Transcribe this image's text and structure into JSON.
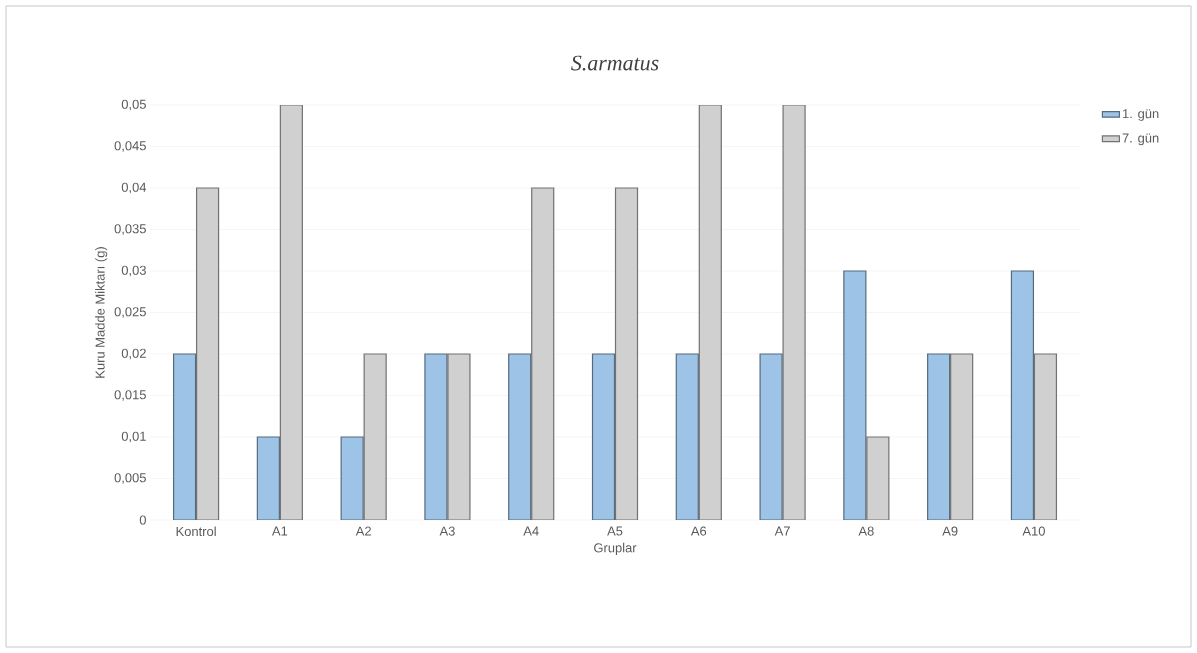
{
  "chart_data": {
    "type": "bar",
    "title": "S.armatus",
    "xlabel": "Gruplar",
    "ylabel": "Kuru Madde Miktarı (g)",
    "categories": [
      "Kontrol",
      "A1",
      "A2",
      "A3",
      "A4",
      "A5",
      "A6",
      "A7",
      "A8",
      "A9",
      "A10"
    ],
    "series": [
      {
        "name": "1. gün",
        "color": "#9dc3e6",
        "values": [
          0.02,
          0.01,
          0.01,
          0.02,
          0.02,
          0.02,
          0.02,
          0.02,
          0.03,
          0.02,
          0.03
        ]
      },
      {
        "name": "7. gün",
        "color": "#d0d0d0",
        "values": [
          0.04,
          0.05,
          0.02,
          0.02,
          0.04,
          0.04,
          0.05,
          0.05,
          0.01,
          0.02,
          0.02
        ]
      }
    ],
    "ylim": [
      0,
      0.05
    ],
    "yticks": [
      0,
      {
        "value": 0.005,
        "label": "0,005"
      },
      {
        "value": 0.01,
        "label": "0,01"
      },
      {
        "value": 0.015,
        "label": "0,015"
      },
      {
        "value": 0.02,
        "label": "0,02"
      },
      {
        "value": 0.025,
        "label": "0,025"
      },
      {
        "value": 0.03,
        "label": "0,03"
      },
      {
        "value": 0.035,
        "label": "0,035"
      },
      {
        "value": 0.04,
        "label": "0,04"
      },
      {
        "value": 0.045,
        "label": "0,045"
      },
      {
        "value": 0.05,
        "label": "0,05"
      }
    ],
    "grid": "y",
    "legend": "top right"
  }
}
